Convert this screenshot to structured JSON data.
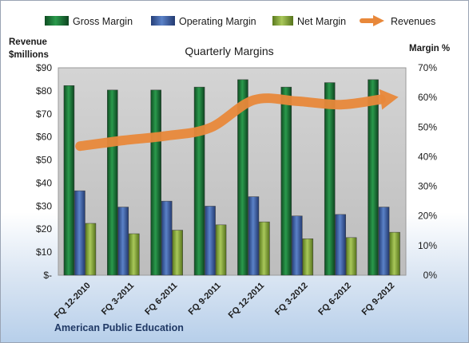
{
  "chart_data": {
    "type": "bar",
    "title": "Quarterly Margins",
    "categories": [
      "FQ 12-2010",
      "FQ 3-2011",
      "FQ 6-2011",
      "FQ 9-2011",
      "FQ 12-2011",
      "FQ 3-2012",
      "FQ 6-2012",
      "FQ 9-2012"
    ],
    "series": [
      {
        "name": "Gross Margin",
        "type": "bar",
        "axis": "right",
        "values": [
          64,
          62.5,
          62.5,
          63.5,
          66,
          63.5,
          65,
          66
        ],
        "color": "#1d7a3a"
      },
      {
        "name": "Operating Margin",
        "type": "bar",
        "axis": "right",
        "values": [
          28.5,
          23,
          25,
          23.3,
          26.5,
          20,
          20.5,
          23
        ],
        "color": "#3f64a8"
      },
      {
        "name": "Net Margin",
        "type": "bar",
        "axis": "right",
        "values": [
          17.5,
          14,
          15.2,
          17,
          18,
          12.3,
          12.7,
          14.5
        ],
        "color": "#8aac3c"
      },
      {
        "name": "Revenues",
        "type": "line",
        "axis": "left",
        "values": [
          56,
          58.5,
          60.5,
          64,
          76,
          75.5,
          74,
          76.5
        ],
        "color": "#e8883a"
      }
    ],
    "y_left": {
      "label_line1": "Revenue",
      "label_line2": "$millions",
      "ylim": [
        0,
        90
      ],
      "ticks": [
        "$-",
        "$10",
        "$20",
        "$30",
        "$40",
        "$50",
        "$60",
        "$70",
        "$80",
        "$90"
      ]
    },
    "y_right": {
      "label": "Margin %",
      "ylim": [
        0,
        70
      ],
      "ticks": [
        "0%",
        "10%",
        "20%",
        "30%",
        "40%",
        "50%",
        "60%",
        "70%"
      ]
    },
    "grid": false,
    "legend_position": "top",
    "plot_background": "#c8c8c8",
    "company": "American Public Education"
  }
}
